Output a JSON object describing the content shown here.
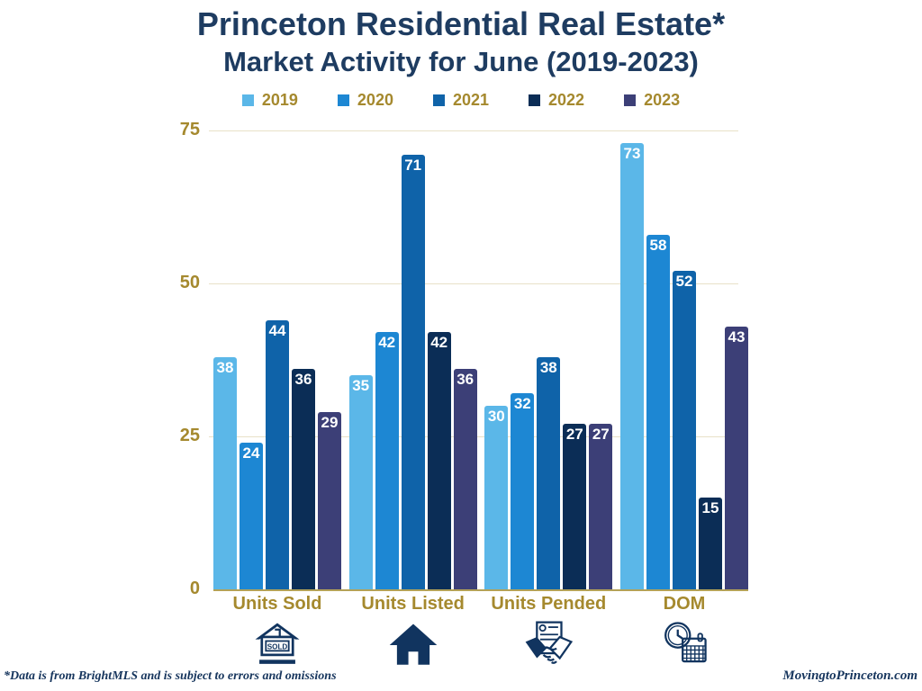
{
  "title": {
    "line1": "Princeton Residential Real Estate*",
    "line2": "Market Activity for June (2019-2023)"
  },
  "chart_data": {
    "type": "bar",
    "title": "Princeton Residential Real Estate* Market Activity for June (2019-2023)",
    "categories": [
      "Units Sold",
      "Units Listed",
      "Units Pended",
      "DOM"
    ],
    "series": [
      {
        "name": "2019",
        "color": "#5bb7e8",
        "values": [
          38,
          35,
          30,
          73
        ]
      },
      {
        "name": "2020",
        "color": "#1d87d3",
        "values": [
          24,
          42,
          32,
          58
        ]
      },
      {
        "name": "2021",
        "color": "#0f63a9",
        "values": [
          44,
          71,
          38,
          52
        ]
      },
      {
        "name": "2022",
        "color": "#0b2d56",
        "values": [
          36,
          42,
          27,
          15
        ]
      },
      {
        "name": "2023",
        "color": "#3c3f77",
        "values": [
          29,
          36,
          27,
          43
        ]
      }
    ],
    "ylim": [
      0,
      75
    ],
    "yticks": [
      0,
      25,
      50,
      75
    ],
    "grid": true,
    "legend_position": "top",
    "value_labels": "inside-top-white"
  },
  "icons": {
    "sold_sign_text": "SOLD",
    "names": [
      "sold-sign-house",
      "house",
      "handshake-contract",
      "clock-calendar"
    ]
  },
  "footer": {
    "note": "*Data is from BrightMLS and is subject to errors and omissions",
    "site": "MovingtoPrinceton.com"
  },
  "colors": {
    "title": "#1e3c61",
    "axis_label": "#a5892e",
    "gridline": "#e8e1c8",
    "baseline": "#b4a257",
    "value_label": "#ffffff",
    "icon": "#11345f",
    "footer": "#16355d"
  }
}
